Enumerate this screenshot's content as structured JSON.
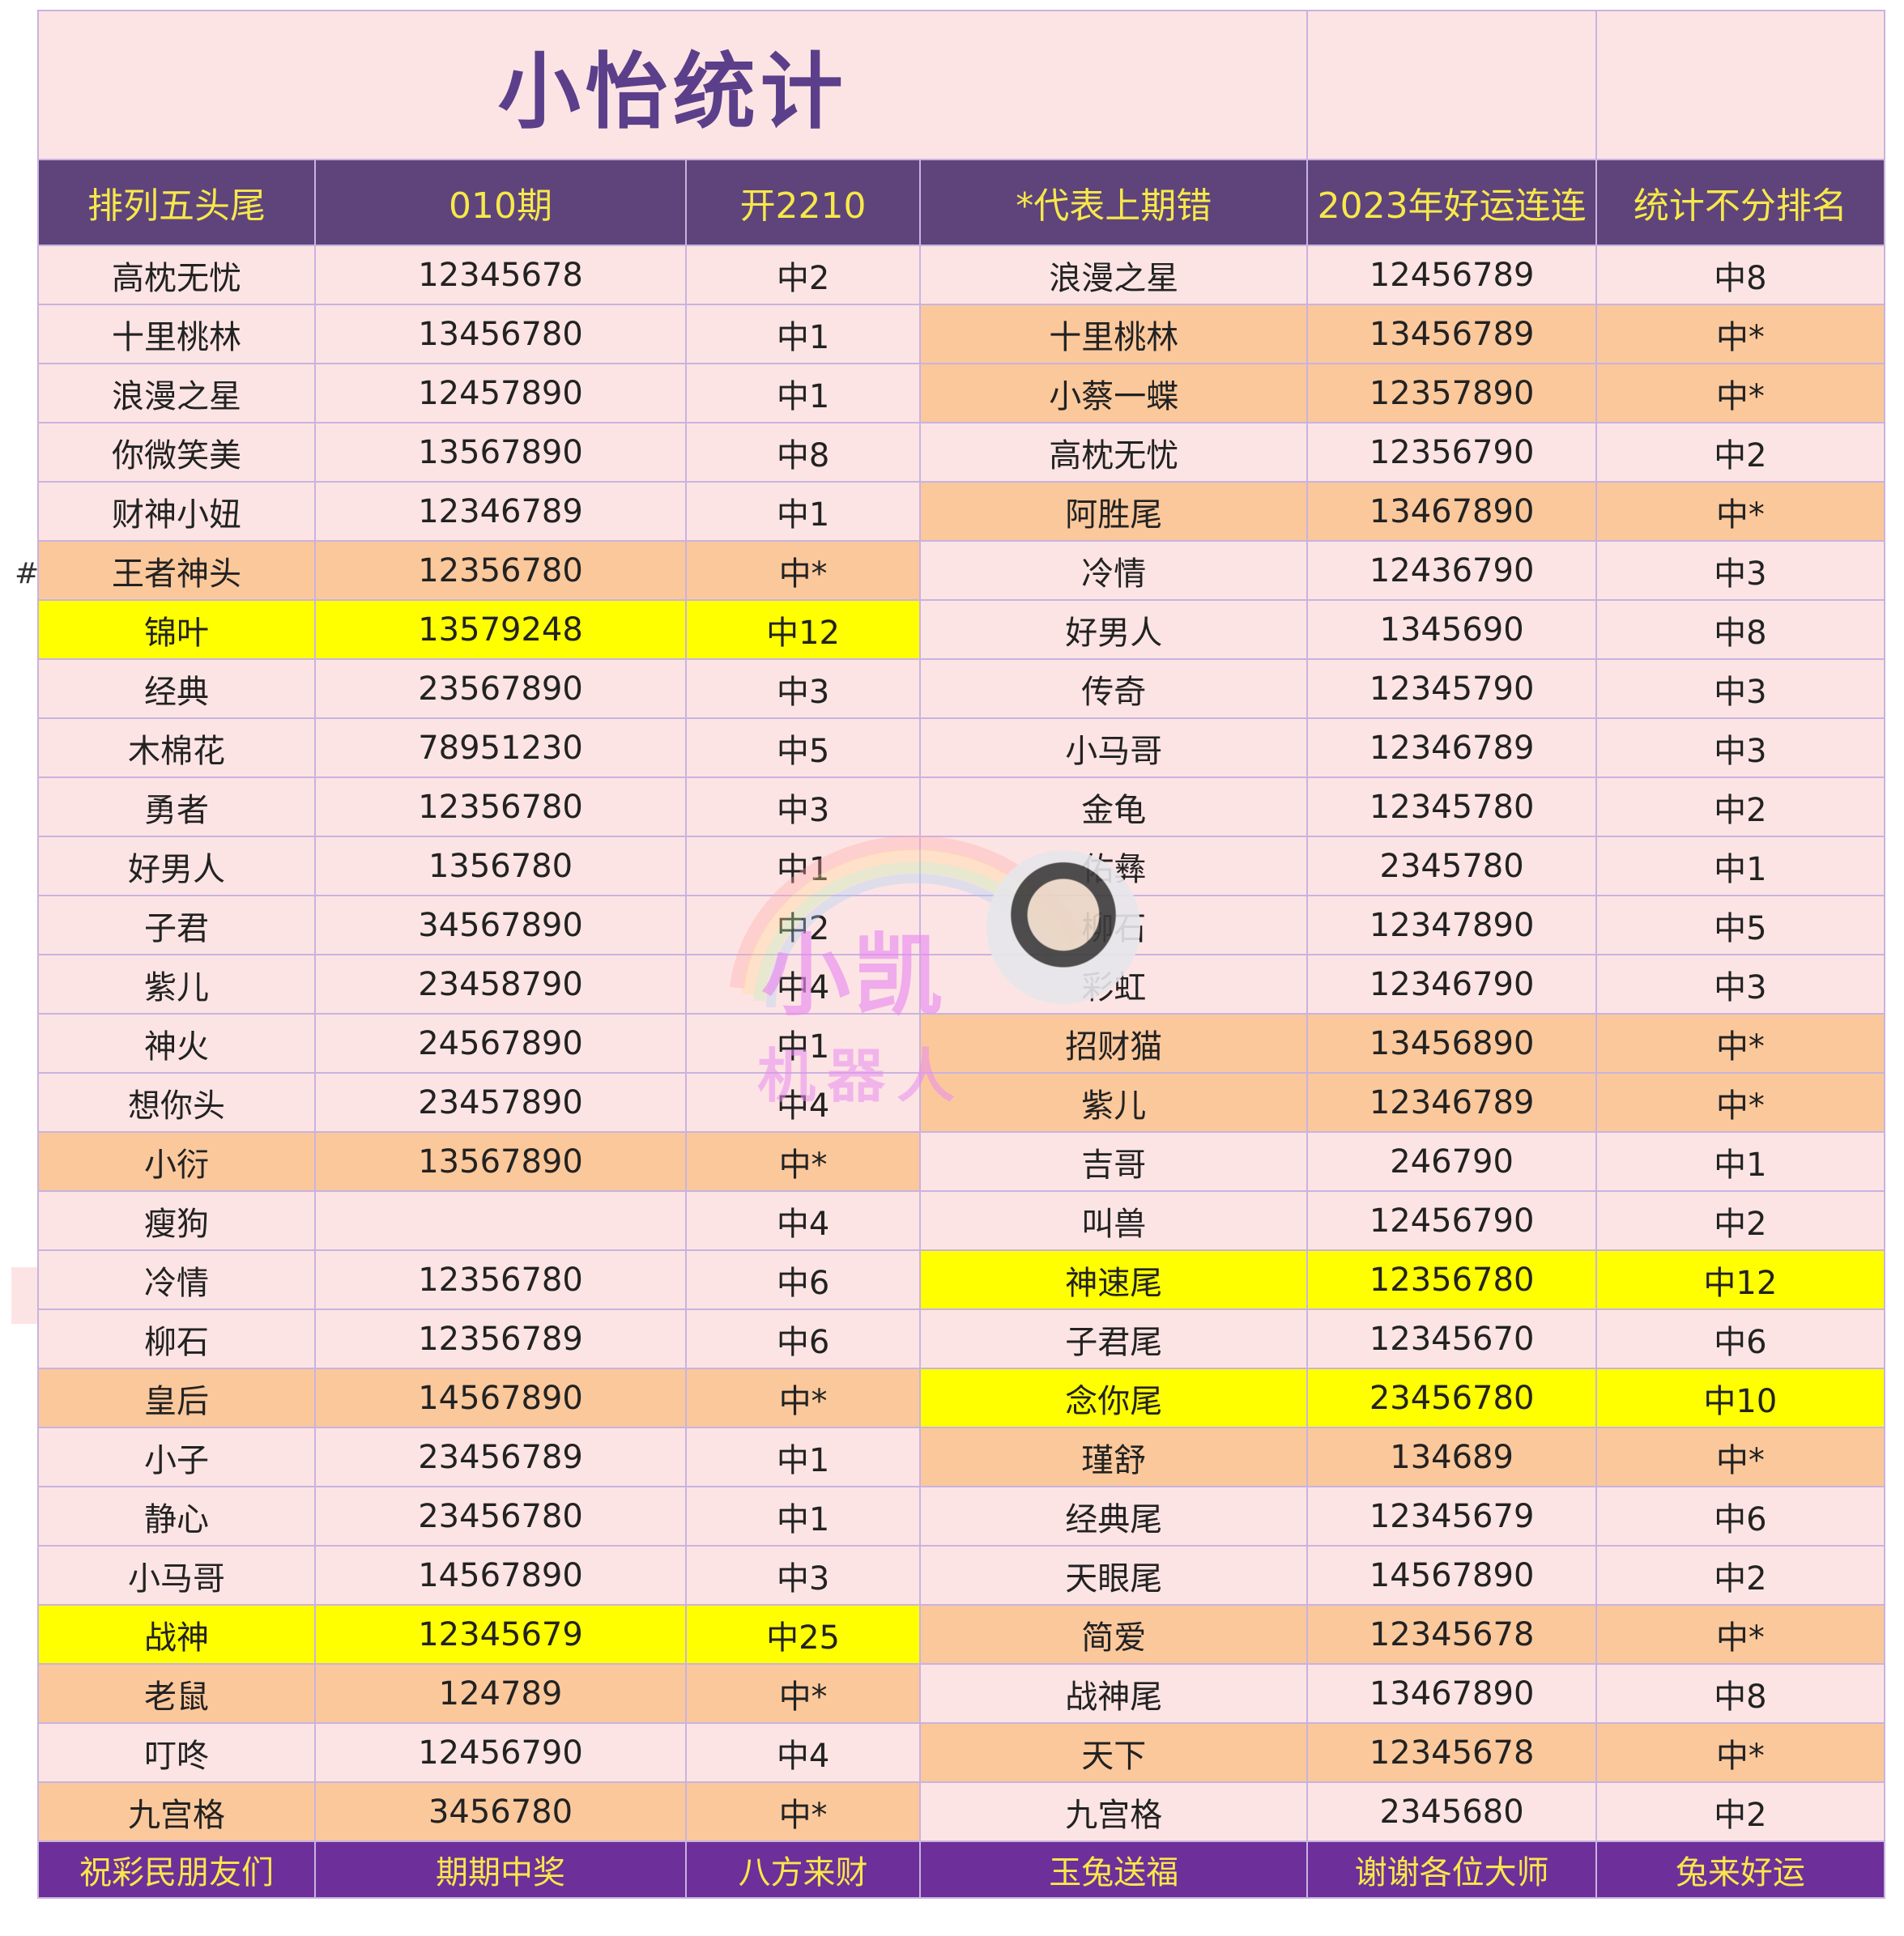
{
  "title": "小怡统计",
  "headers": [
    "排列五头尾",
    "010期",
    "开2210",
    "*代表上期错",
    "2023年好运连连",
    "统计不分排名"
  ],
  "rows": [
    {
      "l_name": "高枕无忧",
      "l_num": "12345678",
      "l_res": "中2",
      "l_bg": "pink",
      "r_name": "浪漫之星",
      "r_num": "12456789",
      "r_res": "中8",
      "r_bg": "pink"
    },
    {
      "l_name": "十里桃林",
      "l_num": "13456780",
      "l_res": "中1",
      "l_bg": "pink",
      "r_name": "十里桃林",
      "r_num": "13456789",
      "r_res": "中*",
      "r_bg": "orange"
    },
    {
      "l_name": "浪漫之星",
      "l_num": "12457890",
      "l_res": "中1",
      "l_bg": "pink",
      "r_name": "小蔡一蝶",
      "r_num": "12357890",
      "r_res": "中*",
      "r_bg": "orange"
    },
    {
      "l_name": "你微笑美",
      "l_num": "13567890",
      "l_res": "中8",
      "l_bg": "pink",
      "r_name": "高枕无忧",
      "r_num": "12356790",
      "r_res": "中2",
      "r_bg": "pink"
    },
    {
      "l_name": "财神小妞",
      "l_num": "12346789",
      "l_res": "中1",
      "l_bg": "pink",
      "r_name": "阿胜尾",
      "r_num": "13467890",
      "r_res": "中*",
      "r_bg": "orange"
    },
    {
      "l_name": "王者神头",
      "l_num": "12356780",
      "l_res": "中*",
      "l_bg": "orange",
      "r_name": "冷情",
      "r_num": "12436790",
      "r_res": "中3",
      "r_bg": "pink"
    },
    {
      "l_name": "锦叶",
      "l_num": "13579248",
      "l_res": "中12",
      "l_bg": "yellow",
      "r_name": "好男人",
      "r_num": "1345690",
      "r_res": "中8",
      "r_bg": "pink"
    },
    {
      "l_name": "经典",
      "l_num": "23567890",
      "l_res": "中3",
      "l_bg": "pink",
      "r_name": "传奇",
      "r_num": "12345790",
      "r_res": "中3",
      "r_bg": "pink"
    },
    {
      "l_name": "木棉花",
      "l_num": "78951230",
      "l_res": "中5",
      "l_bg": "pink",
      "r_name": "小马哥",
      "r_num": "12346789",
      "r_res": "中3",
      "r_bg": "pink"
    },
    {
      "l_name": "勇者",
      "l_num": "12356780",
      "l_res": "中3",
      "l_bg": "pink",
      "r_name": "金龟",
      "r_num": "12345780",
      "r_res": "中2",
      "r_bg": "pink"
    },
    {
      "l_name": "好男人",
      "l_num": "1356780",
      "l_res": "中1",
      "l_bg": "pink",
      "r_name": "佑彝",
      "r_num": "2345780",
      "r_res": "中1",
      "r_bg": "pink"
    },
    {
      "l_name": "子君",
      "l_num": "34567890",
      "l_res": "中2",
      "l_bg": "pink",
      "r_name": "柳石",
      "r_num": "12347890",
      "r_res": "中5",
      "r_bg": "pink"
    },
    {
      "l_name": "紫儿",
      "l_num": "23458790",
      "l_res": "中4",
      "l_bg": "pink",
      "r_name": "彩虹",
      "r_num": "12346790",
      "r_res": "中3",
      "r_bg": "pink"
    },
    {
      "l_name": "神火",
      "l_num": "24567890",
      "l_res": "中1",
      "l_bg": "pink",
      "r_name": "招财猫",
      "r_num": "13456890",
      "r_res": "中*",
      "r_bg": "orange"
    },
    {
      "l_name": "想你头",
      "l_num": "23457890",
      "l_res": "中4",
      "l_bg": "pink",
      "r_name": "紫儿",
      "r_num": "12346789",
      "r_res": "中*",
      "r_bg": "orange"
    },
    {
      "l_name": "小衍",
      "l_num": "13567890",
      "l_res": "中*",
      "l_bg": "orange",
      "r_name": "吉哥",
      "r_num": "246790",
      "r_res": "中1",
      "r_bg": "pink"
    },
    {
      "l_name": "瘦狗",
      "l_num": "",
      "l_res": "中4",
      "l_bg": "pink",
      "r_name": "叫兽",
      "r_num": "12456790",
      "r_res": "中2",
      "r_bg": "pink"
    },
    {
      "l_name": "冷情",
      "l_num": "12356780",
      "l_res": "中6",
      "l_bg": "pink",
      "r_name": "神速尾",
      "r_num": "12356780",
      "r_res": "中12",
      "r_bg": "yellow"
    },
    {
      "l_name": "柳石",
      "l_num": "12356789",
      "l_res": "中6",
      "l_bg": "pink",
      "r_name": "子君尾",
      "r_num": "12345670",
      "r_res": "中6",
      "r_bg": "pink"
    },
    {
      "l_name": "皇后",
      "l_num": "14567890",
      "l_res": "中*",
      "l_bg": "orange",
      "r_name": "念你尾",
      "r_num": "23456780",
      "r_res": "中10",
      "r_bg": "yellow"
    },
    {
      "l_name": "小子",
      "l_num": "23456789",
      "l_res": "中1",
      "l_bg": "pink",
      "r_name": "瑾舒",
      "r_num": "134689",
      "r_res": "中*",
      "r_bg": "orange"
    },
    {
      "l_name": "静心",
      "l_num": "23456780",
      "l_res": "中1",
      "l_bg": "pink",
      "r_name": "经典尾",
      "r_num": "12345679",
      "r_res": "中6",
      "r_bg": "pink"
    },
    {
      "l_name": "小马哥",
      "l_num": "14567890",
      "l_res": "中3",
      "l_bg": "pink",
      "r_name": "天眼尾",
      "r_num": "14567890",
      "r_res": "中2",
      "r_bg": "pink"
    },
    {
      "l_name": "战神",
      "l_num": "12345679",
      "l_res": "中25",
      "l_bg": "yellow",
      "r_name": "简爱",
      "r_num": "12345678",
      "r_res": "中*",
      "r_bg": "orange"
    },
    {
      "l_name": "老鼠",
      "l_num": "124789",
      "l_res": "中*",
      "l_bg": "orange",
      "r_name": "战神尾",
      "r_num": "13467890",
      "r_res": "中8",
      "r_bg": "pink"
    },
    {
      "l_name": "叮咚",
      "l_num": "12456790",
      "l_res": "中4",
      "l_bg": "pink",
      "r_name": "天下",
      "r_num": "12345678",
      "r_res": "中*",
      "r_bg": "orange"
    },
    {
      "l_name": "九宫格",
      "l_num": "3456780",
      "l_res": "中*",
      "l_bg": "orange",
      "r_name": "九宫格",
      "r_num": "2345680",
      "r_res": "中2",
      "r_bg": "pink"
    }
  ],
  "footer": [
    "祝彩民朋友们",
    "期期中奖",
    "八方来财",
    "玉兔送福",
    "谢谢各位大师",
    "兔来好运"
  ],
  "side_mark": "#",
  "watermark": {
    "line1": "小凯",
    "line2": "机器人"
  },
  "colors": {
    "title_bg": "#fde4e4",
    "header_bg": "#5e447b",
    "header_text": "#f7e84a",
    "footer_bg": "#6d2f9a",
    "row_pink": "#fde4e4",
    "row_orange": "#fbc89c",
    "row_yellow": "#ffff00",
    "title_text": "#5b3f8a"
  }
}
